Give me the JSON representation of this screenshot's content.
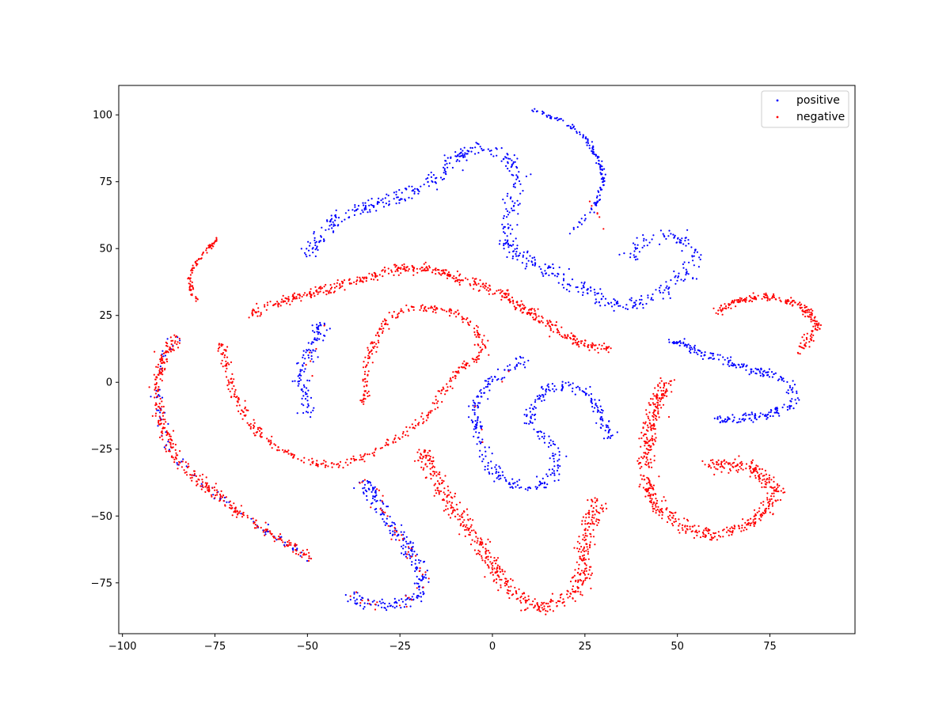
{
  "chart_data": {
    "type": "scatter",
    "title": "",
    "xlabel": "",
    "ylabel": "",
    "xlim": [
      -101,
      98
    ],
    "ylim": [
      -94,
      111
    ],
    "grid": false,
    "legend_placement": "top-right",
    "xticks": [
      -100,
      -75,
      -50,
      -25,
      0,
      25,
      50,
      75
    ],
    "xtick_labels": [
      "−100",
      "−75",
      "−50",
      "−25",
      "0",
      "25",
      "50",
      "75"
    ],
    "yticks": [
      -75,
      -50,
      -25,
      0,
      25,
      50,
      75,
      100
    ],
    "ytick_labels": [
      "−75",
      "−50",
      "−25",
      "0",
      "25",
      "50",
      "75",
      "100"
    ],
    "series": [
      {
        "name": "positive",
        "color": "#0000ff",
        "clusters": [
          {
            "path": [
              [
                11,
                102
              ],
              [
                20,
                97
              ],
              [
                26,
                90
              ],
              [
                29,
                82
              ],
              [
                30,
                75
              ],
              [
                28,
                67
              ],
              [
                24,
                60
              ],
              [
                21,
                55
              ]
            ],
            "width": 0.8,
            "count": 140
          },
          {
            "path": [
              [
                -51,
                47
              ],
              [
                -48,
                53
              ],
              [
                -43,
                60
              ],
              [
                -36,
                65
              ],
              [
                -28,
                68
              ],
              [
                -20,
                72
              ],
              [
                -14,
                78
              ],
              [
                -10,
                84
              ],
              [
                -5,
                88
              ],
              [
                0,
                86
              ],
              [
                4,
                84
              ],
              [
                7,
                78
              ],
              [
                7,
                70
              ],
              [
                5,
                62
              ],
              [
                3,
                56
              ],
              [
                5,
                50
              ],
              [
                8,
                47
              ],
              [
                14,
                43
              ],
              [
                20,
                38
              ],
              [
                26,
                33
              ],
              [
                32,
                29
              ],
              [
                38,
                29
              ],
              [
                45,
                33
              ],
              [
                51,
                38
              ],
              [
                55,
                46
              ],
              [
                52,
                54
              ],
              [
                46,
                55
              ],
              [
                41,
                53
              ],
              [
                38,
                48
              ],
              [
                36,
                46
              ]
            ],
            "width": 2.6,
            "count": 620
          },
          {
            "path": [
              [
                -46,
                22
              ],
              [
                -48,
                16
              ],
              [
                -50,
                8
              ],
              [
                -52,
                0
              ],
              [
                -51,
                -6
              ],
              [
                -49,
                -13
              ]
            ],
            "width": 2.2,
            "count": 110
          },
          {
            "path": [
              [
                9,
                9
              ],
              [
                5,
                5
              ],
              [
                0,
                1
              ],
              [
                -3,
                -3
              ],
              [
                -5,
                -10
              ],
              [
                -4,
                -20
              ],
              [
                -2,
                -28
              ],
              [
                1,
                -34
              ],
              [
                6,
                -39
              ],
              [
                12,
                -39
              ],
              [
                17,
                -34
              ],
              [
                17,
                -26
              ],
              [
                13,
                -20
              ],
              [
                10,
                -14
              ],
              [
                12,
                -6
              ],
              [
                18,
                -1
              ],
              [
                24,
                -2
              ],
              [
                28,
                -8
              ],
              [
                30,
                -15
              ],
              [
                32,
                -21
              ]
            ],
            "width": 2.0,
            "count": 380
          },
          {
            "path": [
              [
                48,
                16
              ],
              [
                55,
                12
              ],
              [
                63,
                8
              ],
              [
                72,
                4
              ],
              [
                79,
                1
              ],
              [
                82,
                -4
              ],
              [
                80,
                -10
              ],
              [
                72,
                -13
              ],
              [
                64,
                -14
              ],
              [
                60,
                -14
              ]
            ],
            "width": 1.8,
            "count": 260
          },
          {
            "path": [
              [
                -35,
                -36
              ],
              [
                -31,
                -46
              ],
              [
                -27,
                -54
              ],
              [
                -23,
                -62
              ],
              [
                -20,
                -69
              ],
              [
                -19,
                -76
              ],
              [
                -22,
                -81
              ],
              [
                -28,
                -84
              ],
              [
                -34,
                -82
              ],
              [
                -40,
                -80
              ]
            ],
            "width": 2.4,
            "count": 240
          },
          {
            "path": [
              [
                -85,
                17
              ],
              [
                -88,
                12
              ],
              [
                -90,
                5
              ],
              [
                -91,
                -3
              ],
              [
                -90,
                -12
              ],
              [
                -88,
                -22
              ],
              [
                -84,
                -30
              ],
              [
                -78,
                -38
              ],
              [
                -70,
                -47
              ],
              [
                -62,
                -55
              ],
              [
                -55,
                -61
              ],
              [
                -49,
                -66
              ]
            ],
            "width": 1.6,
            "count": 90
          }
        ]
      },
      {
        "name": "negative",
        "color": "#ff0000",
        "clusters": [
          {
            "path": [
              [
                -74,
                54
              ],
              [
                -77,
                50
              ],
              [
                -80,
                45
              ],
              [
                -82,
                39
              ],
              [
                -81,
                33
              ],
              [
                -80,
                30
              ]
            ],
            "width": 0.6,
            "count": 80
          },
          {
            "path": [
              [
                -66,
                25
              ],
              [
                -57,
                30
              ],
              [
                -47,
                34
              ],
              [
                -37,
                38
              ],
              [
                -27,
                42
              ],
              [
                -17,
                43
              ],
              [
                -7,
                38
              ],
              [
                3,
                33
              ],
              [
                11,
                25
              ],
              [
                19,
                18
              ],
              [
                26,
                14
              ],
              [
                32,
                12
              ]
            ],
            "width": 1.8,
            "count": 520
          },
          {
            "path": [
              [
                -74,
                16
              ],
              [
                -72,
                8
              ],
              [
                -70,
                -4
              ],
              [
                -65,
                -16
              ],
              [
                -58,
                -25
              ],
              [
                -50,
                -30
              ],
              [
                -42,
                -31
              ],
              [
                -33,
                -27
              ],
              [
                -25,
                -20
              ],
              [
                -17,
                -12
              ],
              [
                -13,
                -3
              ],
              [
                -9,
                5
              ],
              [
                -3,
                10
              ],
              [
                -3,
                16
              ],
              [
                -6,
                22
              ],
              [
                -11,
                27
              ],
              [
                -19,
                28
              ],
              [
                -25,
                27
              ],
              [
                -29,
                22
              ],
              [
                -32,
                14
              ],
              [
                -34,
                6
              ],
              [
                -34,
                -1
              ],
              [
                -35,
                -8
              ]
            ],
            "width": 1.4,
            "count": 520
          },
          {
            "path": [
              [
                -85,
                17
              ],
              [
                -88,
                12
              ],
              [
                -90,
                5
              ],
              [
                -91,
                -3
              ],
              [
                -90,
                -12
              ],
              [
                -88,
                -22
              ],
              [
                -84,
                -30
              ],
              [
                -78,
                -38
              ],
              [
                -70,
                -47
              ],
              [
                -62,
                -55
              ],
              [
                -55,
                -61
              ],
              [
                -49,
                -66
              ]
            ],
            "width": 1.8,
            "count": 360
          },
          {
            "path": [
              [
                -19,
                -25
              ],
              [
                -17,
                -32
              ],
              [
                -13,
                -42
              ],
              [
                -8,
                -52
              ],
              [
                -3,
                -62
              ],
              [
                1,
                -71
              ],
              [
                5,
                -78
              ],
              [
                11,
                -84
              ],
              [
                18,
                -83
              ],
              [
                23,
                -78
              ],
              [
                25,
                -68
              ],
              [
                25,
                -58
              ],
              [
                27,
                -49
              ],
              [
                28,
                -44
              ]
            ],
            "width": 2.6,
            "count": 560
          },
          {
            "path": [
              [
                48,
                1
              ],
              [
                44,
                -6
              ],
              [
                43,
                -14
              ],
              [
                42,
                -24
              ],
              [
                41,
                -34
              ],
              [
                43,
                -44
              ],
              [
                48,
                -51
              ],
              [
                55,
                -56
              ],
              [
                62,
                -57
              ],
              [
                70,
                -53
              ],
              [
                75,
                -46
              ],
              [
                77,
                -40
              ],
              [
                73,
                -35
              ],
              [
                68,
                -31
              ],
              [
                62,
                -30
              ],
              [
                58,
                -32
              ]
            ],
            "width": 2.4,
            "count": 620
          },
          {
            "path": [
              [
                60,
                26
              ],
              [
                67,
                31
              ],
              [
                75,
                32
              ],
              [
                83,
                29
              ],
              [
                88,
                22
              ],
              [
                85,
                15
              ],
              [
                82,
                11
              ]
            ],
            "width": 1.4,
            "count": 220
          },
          {
            "path": [
              [
                -35,
                -36
              ],
              [
                -31,
                -46
              ],
              [
                -27,
                -54
              ],
              [
                -23,
                -62
              ],
              [
                -20,
                -69
              ],
              [
                -19,
                -76
              ],
              [
                -22,
                -81
              ],
              [
                -28,
                -84
              ],
              [
                -34,
                -82
              ],
              [
                -40,
                -80
              ]
            ],
            "width": 2.2,
            "count": 50
          },
          {
            "path": [
              [
                30,
                57
              ],
              [
                28,
                64
              ],
              [
                26,
                68
              ]
            ],
            "width": 0.5,
            "count": 6
          },
          {
            "path": [
              [
                -46,
                22
              ],
              [
                -50,
                8
              ],
              [
                -51,
                -6
              ]
            ],
            "width": 1.5,
            "count": 6
          },
          {
            "path": [
              [
                9,
                9
              ],
              [
                -5,
                -10
              ],
              [
                1,
                -34
              ]
            ],
            "width": 1.5,
            "count": 5
          }
        ]
      }
    ]
  }
}
